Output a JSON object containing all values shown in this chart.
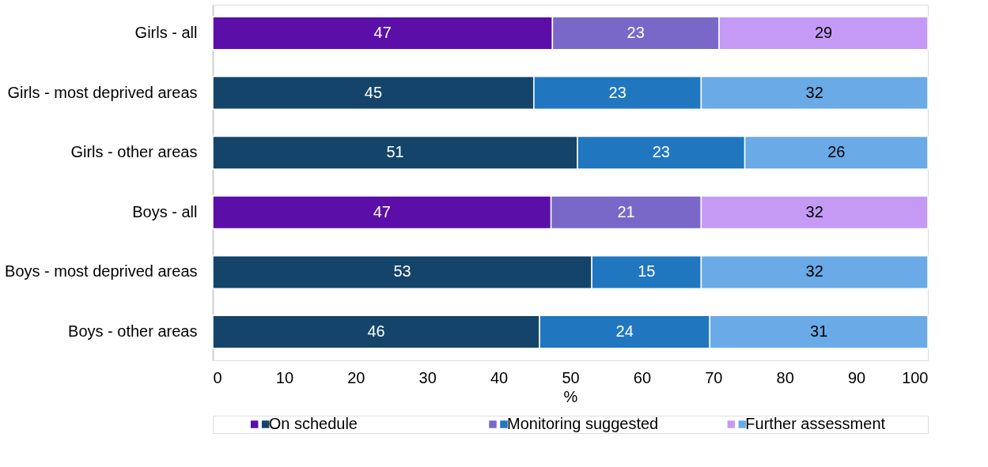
{
  "chart_data": {
    "type": "bar",
    "orientation": "horizontal",
    "stacked": true,
    "legend": "bottom",
    "grid": false,
    "xlabel": "%",
    "xlim": [
      0,
      100
    ],
    "xticks": [
      0,
      10,
      20,
      30,
      40,
      50,
      60,
      70,
      80,
      90,
      100
    ],
    "categories": [
      "Girls - all",
      "Girls - most deprived areas",
      "Girls - other areas",
      "Boys - all",
      "Boys - most deprived areas",
      "Boys - other areas"
    ],
    "series": [
      {
        "name": "On schedule",
        "colors": [
          "#5b0ea8",
          "#144469",
          "#144469",
          "#5b0ea8",
          "#144469",
          "#144469"
        ],
        "values": [
          47.5,
          44.9,
          51.0,
          47.3,
          53.0,
          45.7
        ],
        "value_labels": [
          "47",
          "45",
          "51",
          "47",
          "53",
          "46"
        ]
      },
      {
        "name": "Monitoring suggested",
        "colors": [
          "#7a68c8",
          "#2176c0",
          "#2176c0",
          "#7a68c8",
          "#2176c0",
          "#2176c0"
        ],
        "values": [
          23.3,
          23.4,
          23.4,
          21.0,
          15.3,
          23.8
        ],
        "value_labels": [
          "23",
          "23",
          "23",
          "21",
          "15",
          "24"
        ]
      },
      {
        "name": "Further assessment",
        "colors": [
          "#c49af5",
          "#6aaae6",
          "#6aaae6",
          "#c49af5",
          "#6aaae6",
          "#6aaae6"
        ],
        "values": [
          29.2,
          31.7,
          25.6,
          31.7,
          31.7,
          30.5
        ],
        "value_labels": [
          "29",
          "32",
          "26",
          "32",
          "32",
          "31"
        ]
      }
    ]
  }
}
